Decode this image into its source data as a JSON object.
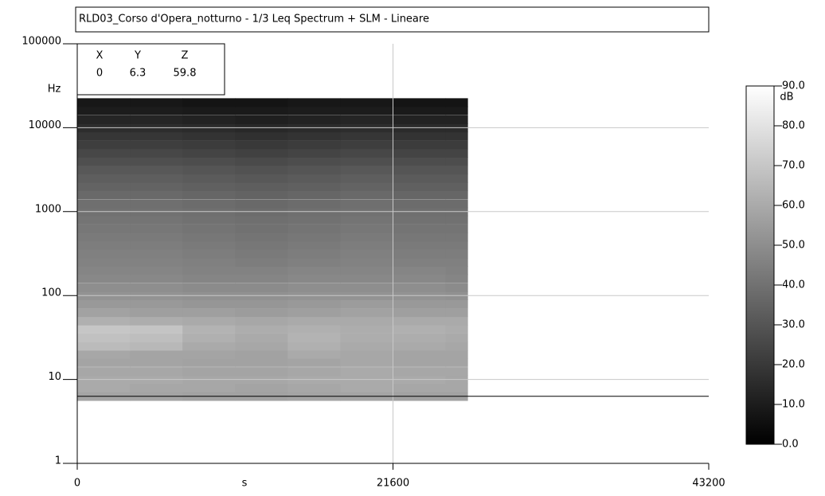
{
  "chart_data": {
    "type": "heatmap",
    "title": "RLD03_Corso d'Opera_notturno - 1/3 Leq Spectrum + SLM - Lineare",
    "x_label": "s",
    "y_label": "Hz",
    "log_y": true,
    "grid": true,
    "xlim": [
      0,
      43200
    ],
    "xticks": [
      0,
      21600,
      43200
    ],
    "ylim": [
      1,
      100000
    ],
    "yticks": [
      1,
      10,
      100,
      1000,
      10000,
      100000
    ],
    "x_edges": [
      0,
      3600,
      7200,
      10800,
      14400,
      18000,
      21600,
      25200,
      26700
    ],
    "y": [
      6.3,
      8,
      10,
      12.5,
      16,
      20,
      25,
      31.5,
      40,
      50,
      63,
      80,
      100,
      125,
      160,
      200,
      250,
      315,
      400,
      500,
      630,
      800,
      1000,
      1250,
      1600,
      2000,
      2500,
      3150,
      4000,
      5000,
      6300,
      8000,
      10000,
      12500,
      16000,
      20000
    ],
    "z": [
      [
        58,
        58,
        57,
        57,
        58,
        58,
        57,
        57
      ],
      [
        60,
        59,
        59,
        58,
        59,
        60,
        59,
        59
      ],
      [
        60,
        60,
        59,
        59,
        60,
        60,
        60,
        59
      ],
      [
        59,
        59,
        58,
        58,
        59,
        60,
        59,
        59
      ],
      [
        58,
        58,
        57,
        57,
        58,
        59,
        58,
        58
      ],
      [
        59,
        58,
        58,
        57,
        60,
        59,
        58,
        58
      ],
      [
        66,
        65,
        60,
        59,
        62,
        60,
        60,
        59
      ],
      [
        68,
        67,
        62,
        60,
        63,
        61,
        61,
        60
      ],
      [
        70,
        69,
        63,
        61,
        62,
        61,
        62,
        61
      ],
      [
        62,
        61,
        60,
        59,
        60,
        60,
        60,
        60
      ],
      [
        57,
        56,
        56,
        55,
        56,
        57,
        56,
        56
      ],
      [
        54,
        54,
        53,
        53,
        54,
        55,
        54,
        54
      ],
      [
        52,
        52,
        51,
        51,
        52,
        52,
        52,
        51
      ],
      [
        50,
        50,
        49,
        49,
        50,
        50,
        50,
        49
      ],
      [
        48,
        48,
        47,
        47,
        48,
        48,
        48,
        47
      ],
      [
        47,
        47,
        46,
        46,
        47,
        47,
        47,
        46
      ],
      [
        46,
        46,
        45,
        44,
        45,
        46,
        45,
        45
      ],
      [
        45,
        45,
        44,
        43,
        44,
        45,
        44,
        44
      ],
      [
        44,
        44,
        43,
        42,
        43,
        44,
        43,
        43
      ],
      [
        43,
        43,
        42,
        41,
        42,
        43,
        42,
        42
      ],
      [
        42,
        42,
        41,
        40,
        41,
        42,
        41,
        41
      ],
      [
        41,
        41,
        40,
        39,
        40,
        41,
        40,
        40
      ],
      [
        40,
        40,
        39,
        38,
        39,
        40,
        39,
        39
      ],
      [
        39,
        39,
        38,
        37,
        38,
        39,
        38,
        38
      ],
      [
        37,
        37,
        36,
        35,
        36,
        37,
        36,
        36
      ],
      [
        35,
        35,
        34,
        33,
        34,
        35,
        34,
        34
      ],
      [
        33,
        33,
        32,
        31,
        32,
        33,
        32,
        32
      ],
      [
        31,
        31,
        30,
        29,
        30,
        31,
        30,
        30
      ],
      [
        28,
        28,
        27,
        26,
        27,
        28,
        27,
        27
      ],
      [
        25,
        25,
        24,
        23,
        24,
        25,
        24,
        24
      ],
      [
        22,
        22,
        21,
        20,
        21,
        22,
        21,
        21
      ],
      [
        19,
        19,
        18,
        17,
        18,
        19,
        18,
        18
      ],
      [
        16,
        16,
        15,
        14,
        15,
        16,
        15,
        15
      ],
      [
        13,
        13,
        12,
        11,
        12,
        13,
        12,
        12
      ],
      [
        10,
        10,
        9,
        9,
        10,
        10,
        9,
        9
      ],
      [
        8,
        8,
        7,
        7,
        8,
        8,
        7,
        7
      ]
    ],
    "colorbar_label": "dB",
    "zlim": [
      0,
      90
    ],
    "zticks": [
      {
        "value": 0,
        "label": "0.0"
      },
      {
        "value": 10,
        "label": "10.0"
      },
      {
        "value": 20,
        "label": "20.0"
      },
      {
        "value": 30,
        "label": "30.0"
      },
      {
        "value": 40,
        "label": "40.0"
      },
      {
        "value": 50,
        "label": "50.0"
      },
      {
        "value": 60,
        "label": "60.0"
      },
      {
        "value": 70,
        "label": "70.0"
      },
      {
        "value": 80,
        "label": "80.0"
      },
      {
        "value": 90,
        "label": "90.0"
      }
    ],
    "cursor": {
      "x_name": "X",
      "y_name": "Y",
      "z_name": "Z",
      "x": 0,
      "y": 6.3,
      "z": 59.8
    }
  }
}
